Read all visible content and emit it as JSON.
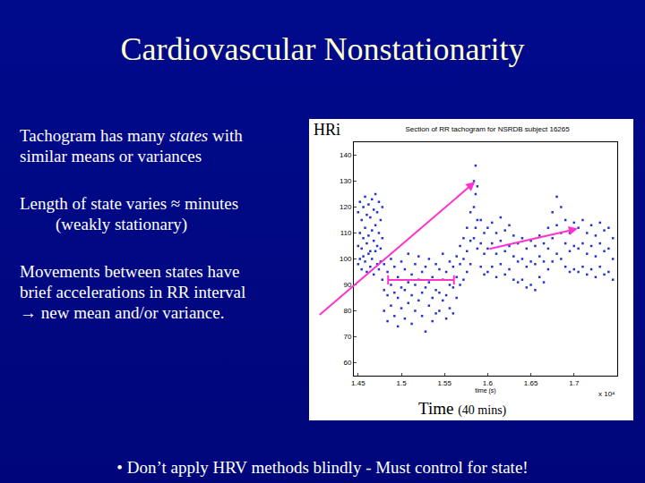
{
  "slide": {
    "title": "Cardiovascular Nonstationarity",
    "paragraphs": [
      [
        [
          {
            "text": "Tachogram has many "
          },
          {
            "text": "states",
            "italic": true
          },
          {
            "text": " with"
          }
        ],
        [
          {
            "text": "similar means or variances"
          }
        ]
      ],
      [
        [
          {
            "text": "Length of state varies ≈ minutes"
          }
        ],
        {
          "indent": true,
          "runs": [
            {
              "text": "(weakly stationary)"
            }
          ]
        }
      ],
      [
        [
          {
            "text": "Movements between states have"
          }
        ],
        [
          {
            "text": "brief accelerations in RR interval"
          }
        ],
        [
          {
            "text": "→ new mean and/or variance."
          }
        ]
      ]
    ],
    "chart_label_y": "HRi",
    "chart_label_x": "Time",
    "chart_label_x_note": "(40 mins)",
    "footer": "• Don’t apply HRV methods blindly - Must control for state!"
  },
  "chart_data": {
    "type": "scatter",
    "title": "Section of RR tachogram for NSRDB subject 16265",
    "x_label": "time (s)",
    "annotations": [
      {
        "text": "x 10⁴"
      }
    ],
    "marker": "square",
    "color": "#2233cc",
    "grid": false,
    "xlim": [
      1.445,
      1.75
    ],
    "xticks": [
      1.45,
      1.5,
      1.55,
      1.6,
      1.65,
      1.7
    ],
    "ylim": [
      55,
      145
    ],
    "yticks": [
      60,
      70,
      80,
      90,
      100,
      110,
      120,
      130,
      140
    ],
    "x": [
      1.45,
      1.45,
      1.45,
      1.452,
      1.452,
      1.452,
      1.454,
      1.454,
      1.454,
      1.456,
      1.456,
      1.456,
      1.458,
      1.458,
      1.458,
      1.46,
      1.46,
      1.46,
      1.462,
      1.462,
      1.462,
      1.464,
      1.464,
      1.464,
      1.466,
      1.466,
      1.466,
      1.468,
      1.468,
      1.468,
      1.47,
      1.47,
      1.47,
      1.472,
      1.472,
      1.472,
      1.474,
      1.474,
      1.474,
      1.476,
      1.476,
      1.476,
      1.478,
      1.478,
      1.478,
      1.48,
      1.48,
      1.48,
      1.484,
      1.484,
      1.484,
      1.488,
      1.488,
      1.488,
      1.492,
      1.492,
      1.492,
      1.496,
      1.496,
      1.496,
      1.5,
      1.5,
      1.5,
      1.504,
      1.504,
      1.504,
      1.508,
      1.508,
      1.508,
      1.512,
      1.512,
      1.512,
      1.516,
      1.516,
      1.516,
      1.52,
      1.52,
      1.52,
      1.524,
      1.524,
      1.524,
      1.528,
      1.528,
      1.528,
      1.532,
      1.532,
      1.532,
      1.536,
      1.536,
      1.536,
      1.54,
      1.54,
      1.54,
      1.544,
      1.544,
      1.544,
      1.548,
      1.548,
      1.548,
      1.552,
      1.552,
      1.552,
      1.556,
      1.556,
      1.556,
      1.56,
      1.56,
      1.56,
      1.564,
      1.564,
      1.564,
      1.568,
      1.568,
      1.568,
      1.572,
      1.572,
      1.572,
      1.576,
      1.576,
      1.576,
      1.58,
      1.58,
      1.58,
      1.584,
      1.584,
      1.584,
      1.586,
      1.586,
      1.586,
      1.588,
      1.588,
      1.588,
      1.592,
      1.592,
      1.592,
      1.596,
      1.596,
      1.596,
      1.6,
      1.6,
      1.6,
      1.605,
      1.605,
      1.605,
      1.61,
      1.61,
      1.61,
      1.615,
      1.615,
      1.615,
      1.62,
      1.62,
      1.62,
      1.625,
      1.625,
      1.625,
      1.63,
      1.63,
      1.63,
      1.635,
      1.635,
      1.635,
      1.64,
      1.64,
      1.64,
      1.645,
      1.645,
      1.645,
      1.65,
      1.65,
      1.65,
      1.655,
      1.655,
      1.655,
      1.66,
      1.66,
      1.66,
      1.665,
      1.665,
      1.665,
      1.67,
      1.67,
      1.67,
      1.675,
      1.675,
      1.675,
      1.68,
      1.68,
      1.68,
      1.685,
      1.685,
      1.685,
      1.69,
      1.69,
      1.69,
      1.695,
      1.695,
      1.695,
      1.7,
      1.7,
      1.7,
      1.705,
      1.705,
      1.705,
      1.71,
      1.71,
      1.71,
      1.715,
      1.715,
      1.715,
      1.72,
      1.72,
      1.72,
      1.725,
      1.725,
      1.725,
      1.73,
      1.73,
      1.73,
      1.735,
      1.735,
      1.735,
      1.74,
      1.74,
      1.74,
      1.745,
      1.745,
      1.745
    ],
    "values": [
      118,
      105,
      98,
      122,
      110,
      100,
      115,
      104,
      96,
      120,
      108,
      101,
      124,
      112,
      99,
      117,
      106,
      95,
      121,
      109,
      102,
      116,
      103,
      97,
      123,
      111,
      100,
      119,
      107,
      94,
      125,
      113,
      103,
      118,
      105,
      98,
      122,
      110,
      96,
      115,
      104,
      99,
      120,
      108,
      92,
      98,
      88,
      80,
      95,
      86,
      76,
      100,
      90,
      82,
      97,
      87,
      78,
      93,
      85,
      74,
      99,
      89,
      81,
      96,
      88,
      77,
      102,
      91,
      83,
      94,
      86,
      75,
      98,
      90,
      80,
      101,
      92,
      84,
      95,
      87,
      78,
      97,
      89,
      72,
      100,
      91,
      82,
      93,
      85,
      76,
      98,
      88,
      79,
      96,
      87,
      80,
      102,
      92,
      84,
      95,
      86,
      77,
      99,
      90,
      81,
      97,
      89,
      79,
      101,
      93,
      85,
      105,
      98,
      90,
      108,
      100,
      92,
      112,
      103,
      95,
      118,
      107,
      98,
      130,
      120,
      108,
      136,
      125,
      112,
      128,
      115,
      104,
      115,
      106,
      97,
      110,
      102,
      94,
      112,
      104,
      95,
      114,
      106,
      97,
      110,
      102,
      93,
      116,
      107,
      98,
      111,
      103,
      94,
      113,
      105,
      96,
      109,
      101,
      92,
      106,
      99,
      91,
      108,
      100,
      92,
      104,
      97,
      89,
      107,
      99,
      90,
      105,
      98,
      88,
      109,
      101,
      93,
      106,
      99,
      91,
      112,
      104,
      96,
      118,
      108,
      99,
      124,
      113,
      102,
      120,
      110,
      100,
      115,
      106,
      97,
      110,
      103,
      95,
      114,
      105,
      96,
      112,
      104,
      95,
      115,
      106,
      97,
      110,
      102,
      94,
      113,
      105,
      96,
      109,
      101,
      93,
      114,
      106,
      97,
      111,
      103,
      94,
      112,
      104,
      95,
      108,
      100,
      92
    ]
  }
}
